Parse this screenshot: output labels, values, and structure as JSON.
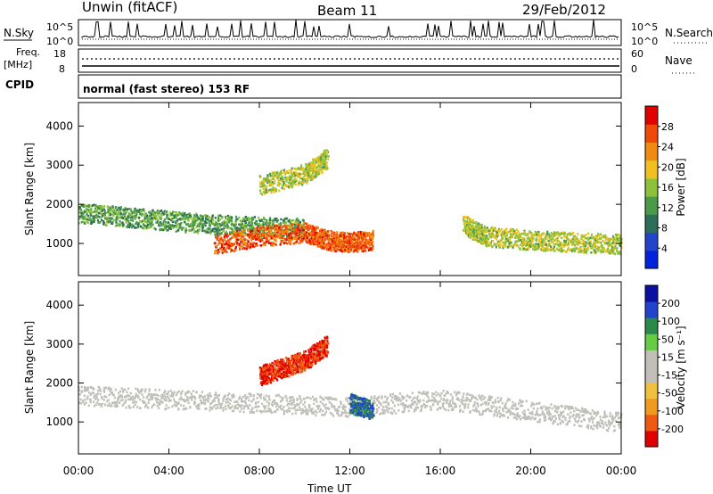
{
  "header": {
    "station": "Unwin (fitACF)",
    "beam": "Beam 11",
    "date": "29/Feb/2012"
  },
  "panels": {
    "noise": {
      "left_label": "N.Sky",
      "right_label": "N.Search",
      "ticks_left": [
        "10^5",
        "10^0"
      ],
      "ticks_right": [
        "10^5",
        "10^0"
      ]
    },
    "freq": {
      "left_label_1": "Freq.",
      "left_label_2": "[MHz]",
      "right_label": "Nave",
      "ticks_left": [
        "18",
        "8"
      ],
      "ticks_right": [
        "60",
        "0"
      ]
    },
    "cpid": {
      "label": "CPID",
      "text": "normal (fast stereo) 153 RF"
    }
  },
  "colors": {
    "frame": "#000000",
    "background": "#ffffff",
    "power_scale": [
      "#0022dd",
      "#2244cc",
      "#2d6e5a",
      "#4a9a4a",
      "#8cc23a",
      "#f0c020",
      "#f08a10",
      "#f04a0a",
      "#e00000"
    ],
    "velocity_scale": [
      "#e00000",
      "#f05a10",
      "#f09a20",
      "#f0c040",
      "#c0c0b8",
      "#c0c0b8",
      "#66cc44",
      "#2a8a4a",
      "#2244cc",
      "#0a10a0"
    ]
  },
  "chart_data": [
    {
      "type": "heatmap",
      "title": "",
      "xlabel": "",
      "ylabel": "Slant Range [km]",
      "x_ticks": [
        "00:00",
        "04:00",
        "08:00",
        "12:00",
        "16:00",
        "20:00",
        "00:00"
      ],
      "y_ticks": [
        "1000",
        "2000",
        "3000",
        "4000"
      ],
      "xlim": [
        0,
        24
      ],
      "ylim": [
        180,
        4600
      ],
      "colorbar": {
        "label": "Power [dB]",
        "ticks": [
          "4",
          "8",
          "12",
          "16",
          "20",
          "24",
          "28"
        ],
        "range": [
          0,
          30
        ]
      },
      "series": [
        {
          "x": [
            0,
            2,
            4,
            6,
            8,
            10
          ],
          "y": [
            1800,
            1700,
            1600,
            1500,
            1450,
            1400
          ],
          "value": 12
        },
        {
          "x": [
            6,
            8,
            10,
            11,
            12,
            13
          ],
          "y": [
            1000,
            1200,
            1300,
            1100,
            1050,
            1100
          ],
          "value": 24
        },
        {
          "x": [
            8,
            10,
            11
          ],
          "y": [
            2500,
            2800,
            3200
          ],
          "value": 16
        },
        {
          "x": [
            17,
            18,
            20,
            22,
            24
          ],
          "y": [
            1500,
            1200,
            1100,
            1050,
            1000
          ],
          "value": 16
        }
      ]
    },
    {
      "type": "heatmap",
      "title": "",
      "xlabel": "Time UT",
      "ylabel": "Slant Range [km]",
      "x_ticks": [
        "00:00",
        "04:00",
        "08:00",
        "12:00",
        "16:00",
        "20:00",
        "00:00"
      ],
      "y_ticks": [
        "1000",
        "2000",
        "3000",
        "4000"
      ],
      "xlim": [
        0,
        24
      ],
      "ylim": [
        180,
        4600
      ],
      "colorbar": {
        "label": "Velocity [m s⁻¹]",
        "ticks": [
          "200",
          "100",
          "50",
          "15",
          "-15",
          "-50",
          "-100",
          "-200"
        ],
        "range": [
          -250,
          250
        ]
      },
      "series": [
        {
          "x": [
            0,
            4,
            8,
            12,
            16,
            20,
            24
          ],
          "y": [
            1700,
            1600,
            1500,
            1400,
            1600,
            1300,
            1000
          ],
          "value": 0
        },
        {
          "x": [
            8,
            9,
            10,
            11
          ],
          "y": [
            2200,
            2400,
            2600,
            3000
          ],
          "value": -200
        },
        {
          "x": [
            12,
            13
          ],
          "y": [
            1500,
            1300
          ],
          "value": 150
        }
      ]
    }
  ]
}
